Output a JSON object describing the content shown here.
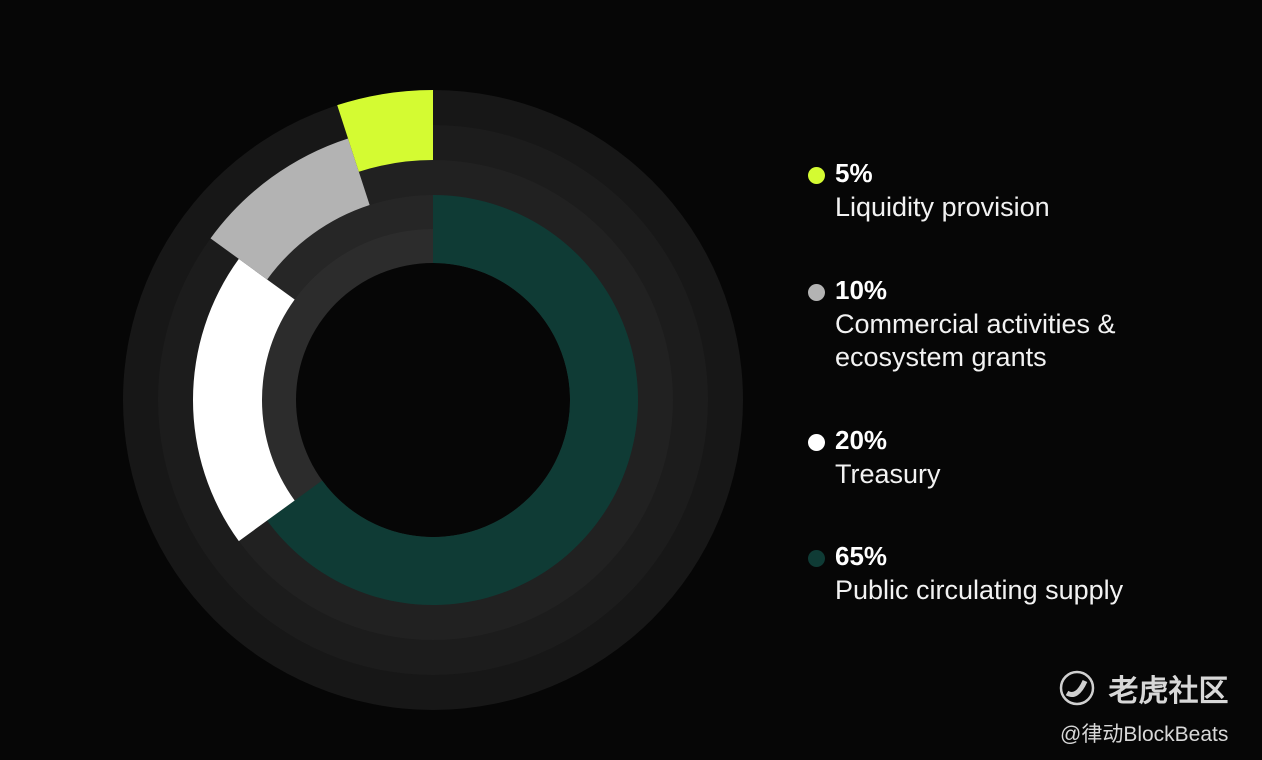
{
  "chart_data": {
    "type": "pie",
    "style": "concentric donut",
    "slices": [
      {
        "label": "Public circulating supply",
        "value": 65,
        "value_label": "65%",
        "color": "#0f3b35"
      },
      {
        "label": "Treasury",
        "value": 20,
        "value_label": "20%",
        "color": "#ffffff"
      },
      {
        "label": "Commercial activities & ecosystem grants",
        "value": 10,
        "value_label": "10%",
        "color": "#b3b3b3"
      },
      {
        "label": "Liquidity provision",
        "value": 5,
        "value_label": "5%",
        "color": "#d4fb32"
      }
    ],
    "legend_order": [
      3,
      2,
      1,
      0
    ],
    "legend_placement": "right"
  },
  "watermark": {
    "brand": "老虎社区",
    "credit": "@律动BlockBeats"
  }
}
